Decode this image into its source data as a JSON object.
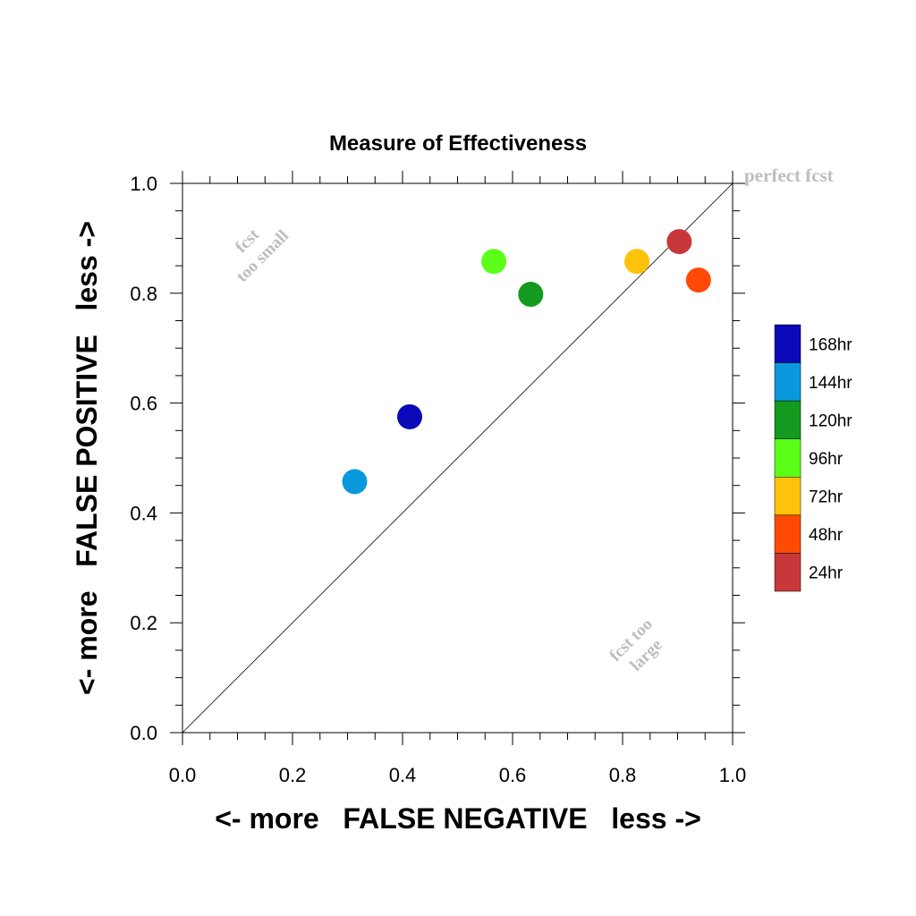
{
  "chart_data": {
    "type": "scatter",
    "title": "Measure of Effectiveness",
    "xlabel": "<- more   FALSE NEGATIVE   less ->",
    "ylabel": "<- more   FALSE POSITIVE   less ->",
    "xlim": [
      0.0,
      1.0
    ],
    "ylim": [
      0.0,
      1.0
    ],
    "xticks": [
      "0.0",
      "0.2",
      "0.4",
      "0.6",
      "0.8",
      "1.0"
    ],
    "yticks": [
      "0.0",
      "0.2",
      "0.4",
      "0.6",
      "0.8",
      "1.0"
    ],
    "grid": false,
    "reference_line": {
      "from": [
        0,
        0
      ],
      "to": [
        1,
        1
      ]
    },
    "annotations": {
      "perfect": "perfect fcst",
      "small_1": "fcst",
      "small_2": "too small",
      "large_1": "fcst too",
      "large_2": "large"
    },
    "legend_position": "right",
    "series": [
      {
        "name": "168hr",
        "color": "#0a0ab8",
        "x": 0.413,
        "y": 0.575
      },
      {
        "name": "144hr",
        "color": "#0a99dc",
        "x": 0.313,
        "y": 0.457
      },
      {
        "name": "120hr",
        "color": "#149a1e",
        "x": 0.633,
        "y": 0.798
      },
      {
        "name": "96hr",
        "color": "#5bff18",
        "x": 0.566,
        "y": 0.858
      },
      {
        "name": "72hr",
        "color": "#ffc20a",
        "x": 0.826,
        "y": 0.858
      },
      {
        "name": "48hr",
        "color": "#ff4a05",
        "x": 0.938,
        "y": 0.824
      },
      {
        "name": "24hr",
        "color": "#c8383a",
        "x": 0.903,
        "y": 0.894
      }
    ]
  }
}
